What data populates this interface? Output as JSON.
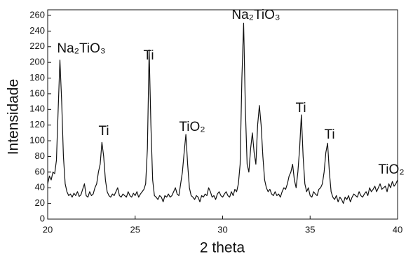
{
  "chart_data": {
    "type": "line",
    "x_label": "2 theta",
    "y_label": "Intensidade",
    "x": [
      20,
      20.1,
      20.2,
      20.3,
      20.4,
      20.5,
      20.6,
      20.7,
      20.8,
      20.9,
      21,
      21.1,
      21.2,
      21.3,
      21.4,
      21.5,
      21.6,
      21.7,
      21.8,
      21.9,
      22,
      22.1,
      22.2,
      22.3,
      22.4,
      22.5,
      22.6,
      22.7,
      22.8,
      22.9,
      23,
      23.1,
      23.2,
      23.3,
      23.4,
      23.5,
      23.6,
      23.7,
      23.8,
      23.9,
      24,
      24.1,
      24.2,
      24.3,
      24.4,
      24.5,
      24.6,
      24.7,
      24.8,
      24.9,
      25,
      25.1,
      25.2,
      25.3,
      25.4,
      25.5,
      25.6,
      25.7,
      25.8,
      25.9,
      26,
      26.1,
      26.2,
      26.3,
      26.4,
      26.5,
      26.6,
      26.7,
      26.8,
      26.9,
      27,
      27.1,
      27.2,
      27.3,
      27.4,
      27.5,
      27.6,
      27.7,
      27.8,
      27.9,
      28,
      28.1,
      28.2,
      28.3,
      28.4,
      28.5,
      28.6,
      28.7,
      28.8,
      28.9,
      29,
      29.1,
      29.2,
      29.3,
      29.4,
      29.5,
      29.6,
      29.7,
      29.8,
      29.9,
      30,
      30.1,
      30.2,
      30.3,
      30.4,
      30.5,
      30.6,
      30.7,
      30.8,
      30.9,
      31,
      31.1,
      31.2,
      31.3,
      31.4,
      31.5,
      31.6,
      31.7,
      31.8,
      31.9,
      32,
      32.1,
      32.2,
      32.3,
      32.4,
      32.5,
      32.6,
      32.7,
      32.8,
      32.9,
      33,
      33.1,
      33.2,
      33.3,
      33.4,
      33.5,
      33.6,
      33.7,
      33.8,
      33.9,
      34,
      34.1,
      34.2,
      34.3,
      34.4,
      34.5,
      34.6,
      34.7,
      34.8,
      34.9,
      35,
      35.1,
      35.2,
      35.3,
      35.4,
      35.5,
      35.6,
      35.7,
      35.8,
      35.9,
      36,
      36.1,
      36.2,
      36.3,
      36.4,
      36.5,
      36.6,
      36.7,
      36.8,
      36.9,
      37,
      37.1,
      37.2,
      37.3,
      37.4,
      37.5,
      37.6,
      37.7,
      37.8,
      37.9,
      38,
      38.1,
      38.2,
      38.3,
      38.4,
      38.5,
      38.6,
      38.7,
      38.8,
      38.9,
      39,
      39.1,
      39.2,
      39.3,
      39.4,
      39.5,
      39.6,
      39.7,
      39.8,
      39.9,
      40
    ],
    "series": [
      {
        "color": "#111111",
        "values": [
          45,
          55,
          50,
          60,
          58,
          75,
          140,
          203,
          150,
          80,
          45,
          35,
          30,
          32,
          28,
          33,
          30,
          35,
          29,
          31,
          38,
          45,
          30,
          28,
          35,
          30,
          32,
          40,
          45,
          60,
          70,
          98,
          80,
          50,
          35,
          30,
          28,
          32,
          30,
          35,
          40,
          30,
          28,
          32,
          30,
          28,
          35,
          30,
          28,
          33,
          30,
          35,
          28,
          32,
          35,
          38,
          45,
          90,
          216,
          120,
          50,
          30,
          28,
          25,
          30,
          28,
          22,
          30,
          28,
          32,
          28,
          30,
          35,
          40,
          32,
          30,
          45,
          60,
          85,
          108,
          70,
          40,
          30,
          28,
          25,
          30,
          28,
          22,
          30,
          28,
          32,
          30,
          40,
          35,
          28,
          30,
          25,
          32,
          35,
          30,
          28,
          32,
          35,
          30,
          28,
          35,
          30,
          38,
          35,
          45,
          70,
          180,
          250,
          140,
          70,
          60,
          90,
          110,
          85,
          70,
          120,
          145,
          120,
          80,
          50,
          40,
          35,
          38,
          32,
          30,
          35,
          30,
          32,
          28,
          35,
          40,
          38,
          45,
          55,
          60,
          70,
          50,
          40,
          60,
          90,
          133,
          80,
          45,
          35,
          40,
          30,
          28,
          35,
          32,
          30,
          38,
          40,
          45,
          60,
          85,
          97,
          60,
          35,
          28,
          25,
          30,
          22,
          28,
          25,
          20,
          28,
          25,
          30,
          22,
          28,
          32,
          30,
          28,
          35,
          30,
          28,
          32,
          35,
          30,
          40,
          35,
          38,
          42,
          35,
          40,
          45,
          38,
          40,
          42,
          35,
          45,
          40,
          48,
          42,
          45,
          50
        ]
      }
    ],
    "annotations": [
      "Na₂TiO₃",
      "Ti",
      "Ti",
      "TiO₂",
      "Na₂TiO₃",
      "Ti",
      "Ti",
      "TiO₂"
    ],
    "xlim": [
      20,
      40
    ],
    "xticks": [
      20,
      25,
      30,
      35,
      40
    ],
    "ylim": [
      0,
      260
    ],
    "yticks": [
      0,
      20,
      40,
      60,
      80,
      100,
      120,
      140,
      160,
      180,
      200,
      220,
      240,
      260
    ]
  }
}
